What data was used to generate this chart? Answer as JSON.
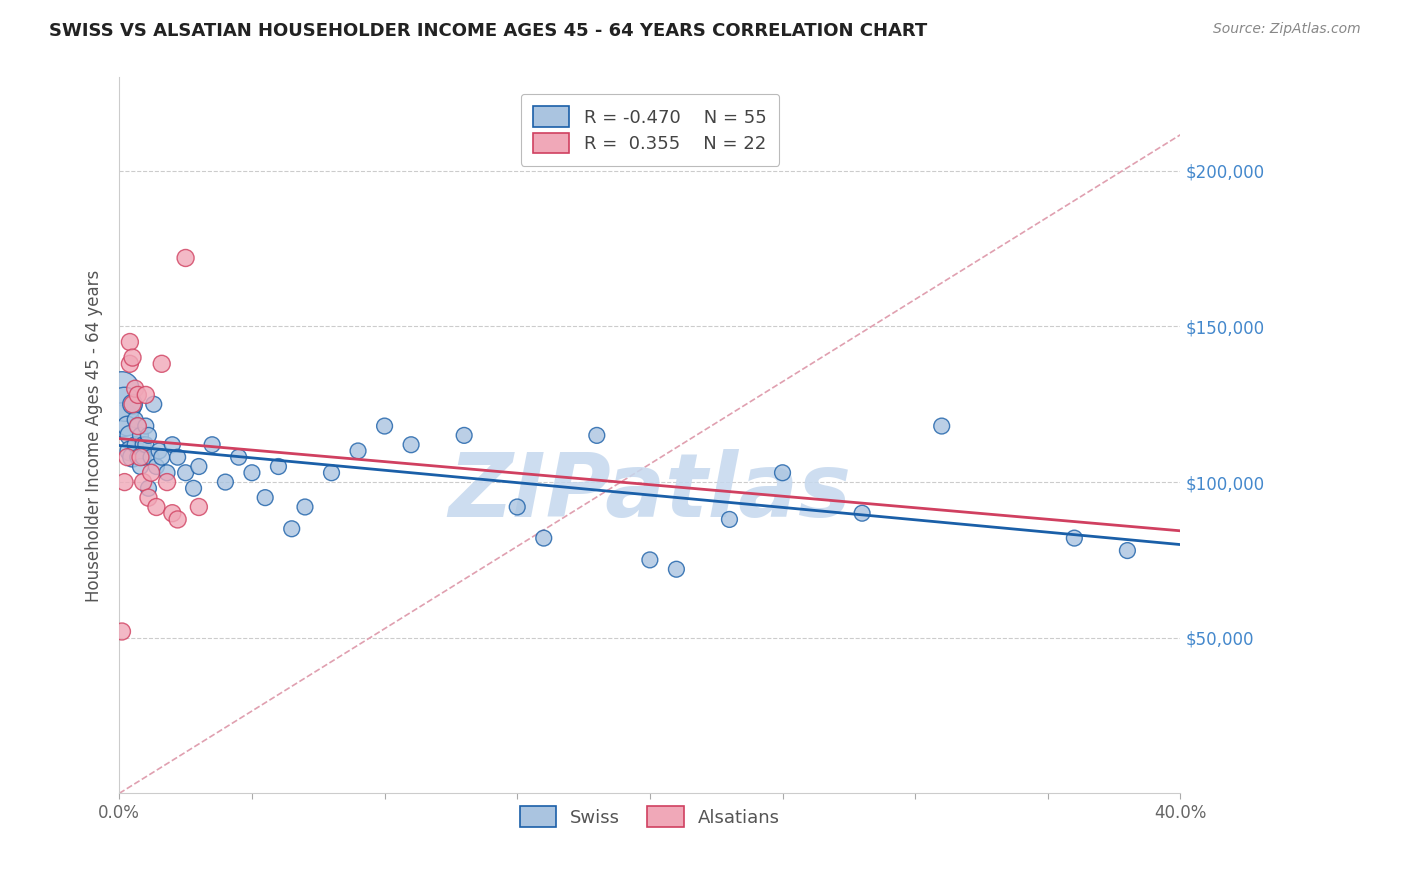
{
  "title": "SWISS VS ALSATIAN HOUSEHOLDER INCOME AGES 45 - 64 YEARS CORRELATION CHART",
  "source": "Source: ZipAtlas.com",
  "ylabel": "Householder Income Ages 45 - 64 years",
  "xlim": [
    0.0,
    0.4
  ],
  "ylim": [
    0,
    230000
  ],
  "yticks": [
    50000,
    100000,
    150000,
    200000
  ],
  "ytick_labels": [
    "$50,000",
    "$100,000",
    "$150,000",
    "$200,000"
  ],
  "xticks": [
    0.0,
    0.05,
    0.1,
    0.15,
    0.2,
    0.25,
    0.3,
    0.35,
    0.4
  ],
  "swiss_color": "#aac4e0",
  "alsatian_color": "#f0a8b8",
  "swiss_line_color": "#1a5fa8",
  "alsatian_line_color": "#d04060",
  "diagonal_color": "#e0a0b0",
  "watermark_color": "#c5d8ee",
  "swiss_R": -0.47,
  "swiss_N": 55,
  "alsatian_R": 0.355,
  "alsatian_N": 22,
  "swiss_x": [
    0.001,
    0.001,
    0.002,
    0.003,
    0.004,
    0.004,
    0.005,
    0.005,
    0.006,
    0.006,
    0.007,
    0.007,
    0.008,
    0.008,
    0.009,
    0.009,
    0.01,
    0.01,
    0.011,
    0.011,
    0.012,
    0.013,
    0.014,
    0.015,
    0.016,
    0.018,
    0.02,
    0.022,
    0.025,
    0.028,
    0.03,
    0.035,
    0.04,
    0.045,
    0.05,
    0.055,
    0.06,
    0.065,
    0.07,
    0.08,
    0.09,
    0.1,
    0.11,
    0.13,
    0.15,
    0.16,
    0.18,
    0.2,
    0.21,
    0.23,
    0.25,
    0.28,
    0.31,
    0.36,
    0.38
  ],
  "swiss_y": [
    130000,
    120000,
    125000,
    118000,
    115000,
    110000,
    125000,
    108000,
    120000,
    112000,
    118000,
    108000,
    115000,
    105000,
    112000,
    108000,
    118000,
    112000,
    115000,
    98000,
    108000,
    125000,
    105000,
    110000,
    108000,
    103000,
    112000,
    108000,
    103000,
    98000,
    105000,
    112000,
    100000,
    108000,
    103000,
    95000,
    105000,
    85000,
    92000,
    103000,
    110000,
    118000,
    112000,
    115000,
    92000,
    82000,
    115000,
    75000,
    72000,
    88000,
    103000,
    90000,
    118000,
    82000,
    78000
  ],
  "alsatian_x": [
    0.001,
    0.002,
    0.003,
    0.004,
    0.004,
    0.005,
    0.005,
    0.006,
    0.007,
    0.007,
    0.008,
    0.009,
    0.01,
    0.011,
    0.012,
    0.014,
    0.016,
    0.018,
    0.02,
    0.022,
    0.025,
    0.03
  ],
  "alsatian_y": [
    52000,
    100000,
    108000,
    145000,
    138000,
    140000,
    125000,
    130000,
    128000,
    118000,
    108000,
    100000,
    128000,
    95000,
    103000,
    92000,
    138000,
    100000,
    90000,
    88000,
    172000,
    92000
  ]
}
